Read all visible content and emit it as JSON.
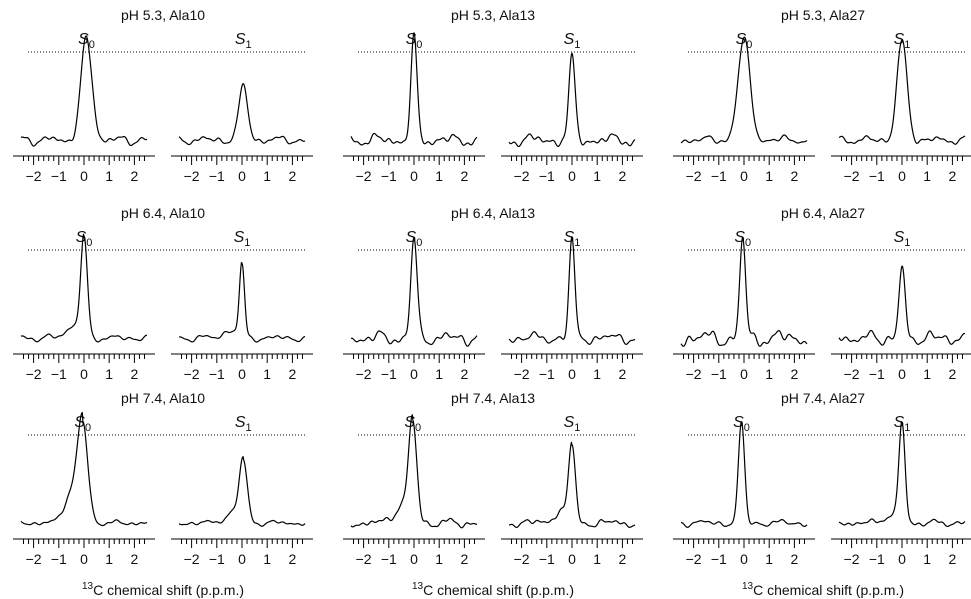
{
  "chart_data": {
    "type": "line",
    "xlabel_parts": {
      "superscript": "13",
      "text": "C chemical shift (p.p.m.)"
    },
    "xlim": [
      -2.5,
      2.5
    ],
    "major_ticks": [
      -2,
      -1,
      0,
      1,
      2
    ],
    "minor_tick_step": 0.2,
    "reference_line": "dotted",
    "panels": [
      {
        "title": "pH 5.3, Ala10",
        "series": [
          {
            "name": "S",
            "subscript": "0",
            "center": 0.1,
            "width": 0.22,
            "height": 1.0,
            "tail": 0.0,
            "noise": 0.07,
            "seed": 11
          },
          {
            "name": "S",
            "subscript": "1",
            "center": 0.05,
            "width": 0.18,
            "height": 0.52,
            "tail": 0.0,
            "noise": 0.06,
            "seed": 12
          }
        ]
      },
      {
        "title": "pH 5.3, Ala13",
        "series": [
          {
            "name": "S",
            "subscript": "0",
            "center": 0.0,
            "width": 0.12,
            "height": 1.0,
            "tail": 0.0,
            "noise": 0.09,
            "seed": 21
          },
          {
            "name": "S",
            "subscript": "1",
            "center": 0.0,
            "width": 0.12,
            "height": 0.82,
            "tail": 0.0,
            "noise": 0.09,
            "seed": 22
          }
        ]
      },
      {
        "title": "pH 5.3, Ala27",
        "series": [
          {
            "name": "S",
            "subscript": "0",
            "center": 0.0,
            "width": 0.24,
            "height": 1.0,
            "tail": 0.0,
            "noise": 0.06,
            "seed": 31
          },
          {
            "name": "S",
            "subscript": "1",
            "center": 0.0,
            "width": 0.2,
            "height": 0.98,
            "tail": 0.0,
            "noise": 0.06,
            "seed": 32
          }
        ]
      },
      {
        "title": "pH 6.4, Ala10",
        "series": [
          {
            "name": "S",
            "subscript": "0",
            "center": 0.0,
            "width": 0.13,
            "height": 1.0,
            "tail": 0.12,
            "noise": 0.05,
            "seed": 41
          },
          {
            "name": "S",
            "subscript": "1",
            "center": 0.0,
            "width": 0.1,
            "height": 0.72,
            "tail": 0.08,
            "noise": 0.05,
            "seed": 42
          }
        ]
      },
      {
        "title": "pH 6.4, Ala13",
        "series": [
          {
            "name": "S",
            "subscript": "0",
            "center": 0.0,
            "width": 0.12,
            "height": 1.0,
            "tail": 0.0,
            "noise": 0.1,
            "seed": 51
          },
          {
            "name": "S",
            "subscript": "1",
            "center": 0.0,
            "width": 0.11,
            "height": 0.98,
            "tail": 0.0,
            "noise": 0.08,
            "seed": 52
          }
        ]
      },
      {
        "title": "pH 6.4, Ala27",
        "series": [
          {
            "name": "S",
            "subscript": "0",
            "center": -0.05,
            "width": 0.11,
            "height": 1.0,
            "tail": 0.0,
            "noise": 0.12,
            "seed": 61
          },
          {
            "name": "S",
            "subscript": "1",
            "center": 0.0,
            "width": 0.12,
            "height": 0.68,
            "tail": 0.0,
            "noise": 0.1,
            "seed": 62
          }
        ]
      },
      {
        "title": "pH 7.4, Ala10",
        "series": [
          {
            "name": "S",
            "subscript": "0",
            "center": -0.05,
            "width": 0.2,
            "height": 1.0,
            "tail": 0.3,
            "noise": 0.04,
            "seed": 71
          },
          {
            "name": "S",
            "subscript": "1",
            "center": 0.05,
            "width": 0.16,
            "height": 0.62,
            "tail": 0.1,
            "noise": 0.04,
            "seed": 72
          }
        ]
      },
      {
        "title": "pH 7.4, Ala13",
        "series": [
          {
            "name": "S",
            "subscript": "0",
            "center": -0.05,
            "width": 0.16,
            "height": 1.0,
            "tail": 0.18,
            "noise": 0.07,
            "seed": 81
          },
          {
            "name": "S",
            "subscript": "1",
            "center": 0.0,
            "width": 0.13,
            "height": 0.78,
            "tail": 0.12,
            "noise": 0.06,
            "seed": 82
          }
        ]
      },
      {
        "title": "pH 7.4, Ala27",
        "series": [
          {
            "name": "S",
            "subscript": "0",
            "center": -0.1,
            "width": 0.12,
            "height": 1.0,
            "tail": 0.0,
            "noise": 0.05,
            "seed": 91
          },
          {
            "name": "S",
            "subscript": "1",
            "center": 0.0,
            "width": 0.12,
            "height": 1.0,
            "tail": 0.08,
            "noise": 0.05,
            "seed": 92
          }
        ]
      }
    ]
  }
}
